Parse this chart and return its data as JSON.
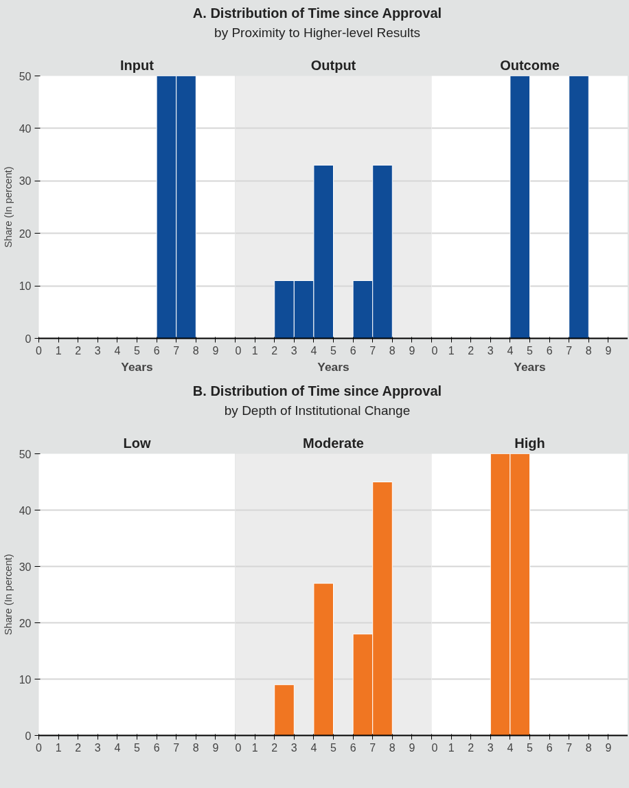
{
  "chart_data": [
    {
      "type": "histogram",
      "title": "Input",
      "annotations": [
        "A. Distribution of Time since Approval",
        "by Proximity to Higher-level Results"
      ],
      "ylabel": "Share (In percent)",
      "xlabel": "Years",
      "bins": [
        0,
        1,
        2,
        3,
        4,
        5,
        6,
        7,
        8,
        9,
        10
      ],
      "values": [
        0,
        0,
        0,
        0,
        0,
        0,
        50,
        50,
        0,
        0
      ],
      "color": "#0f4c97",
      "xlim": [
        0,
        10
      ],
      "xticks": [
        0,
        1,
        2,
        3,
        4,
        5,
        6,
        7,
        8,
        9
      ],
      "ylim": [
        0,
        50
      ],
      "yticks": [
        0,
        10,
        20,
        30,
        40,
        50
      ],
      "grid": "y"
    },
    {
      "type": "histogram",
      "title": "Output",
      "xlabel": "Years",
      "bins": [
        0,
        1,
        2,
        3,
        4,
        5,
        6,
        7,
        8,
        9,
        10
      ],
      "values": [
        0,
        0,
        11,
        11,
        33,
        0,
        11,
        33,
        0,
        0
      ],
      "color": "#0f4c97",
      "xlim": [
        0,
        10
      ],
      "xticks": [
        0,
        1,
        2,
        3,
        4,
        5,
        6,
        7,
        8,
        9
      ],
      "ylim": [
        0,
        50
      ],
      "yticks": [
        0,
        10,
        20,
        30,
        40,
        50
      ],
      "grid": "y",
      "tick_labels": "x"
    },
    {
      "type": "histogram",
      "title": "Outcome",
      "xlabel": "Years",
      "bins": [
        0,
        1,
        2,
        3,
        4,
        5,
        6,
        7,
        8,
        9,
        10
      ],
      "values": [
        0,
        0,
        0,
        0,
        50,
        0,
        0,
        50,
        0,
        0
      ],
      "color": "#0f4c97",
      "xlim": [
        0,
        10
      ],
      "xticks": [
        0,
        1,
        2,
        3,
        4,
        5,
        6,
        7,
        8,
        9
      ],
      "ylim": [
        0,
        50
      ],
      "yticks": [
        0,
        10,
        20,
        30,
        40,
        50
      ],
      "grid": "y",
      "tick_labels": "x"
    },
    {
      "type": "histogram",
      "title": "Low",
      "annotations": [
        "B. Distribution of Time since Approval",
        "by Depth of Institutional Change"
      ],
      "ylabel": "Share (In percent)",
      "xlim": [
        0,
        10
      ],
      "xticks": [
        0,
        1,
        2,
        3,
        4,
        5,
        6,
        7,
        8,
        9
      ],
      "ylim": [
        0,
        50
      ],
      "yticks": [
        0,
        10,
        20,
        30,
        40,
        50
      ],
      "grid": "y"
    },
    {
      "type": "histogram",
      "title": "Moderate",
      "bins": [
        0,
        1,
        2,
        3,
        4,
        5,
        6,
        7,
        8,
        9,
        10
      ],
      "values": [
        0,
        0,
        9,
        0,
        27,
        0,
        18,
        45,
        0,
        0
      ],
      "color": "#f07622",
      "xlim": [
        0,
        10
      ],
      "xticks": [
        0,
        1,
        2,
        3,
        4,
        5,
        6,
        7,
        8,
        9
      ],
      "ylim": [
        0,
        50
      ],
      "yticks": [
        0,
        10,
        20,
        30,
        40,
        50
      ],
      "grid": "y",
      "tick_labels": "x"
    },
    {
      "type": "histogram",
      "title": "High",
      "bins": [
        0,
        1,
        2,
        3,
        4,
        5,
        6,
        7,
        8,
        9,
        10
      ],
      "values": [
        0,
        0,
        0,
        50,
        50,
        0,
        0,
        0,
        0,
        0
      ],
      "color": "#f07622",
      "xlim": [
        0,
        10
      ],
      "xticks": [
        0,
        1,
        2,
        3,
        4,
        5,
        6,
        7,
        8,
        9
      ],
      "ylim": [
        0,
        50
      ],
      "yticks": [
        0,
        10,
        20,
        30,
        40,
        50
      ],
      "grid": "y",
      "tick_labels": "x"
    }
  ]
}
